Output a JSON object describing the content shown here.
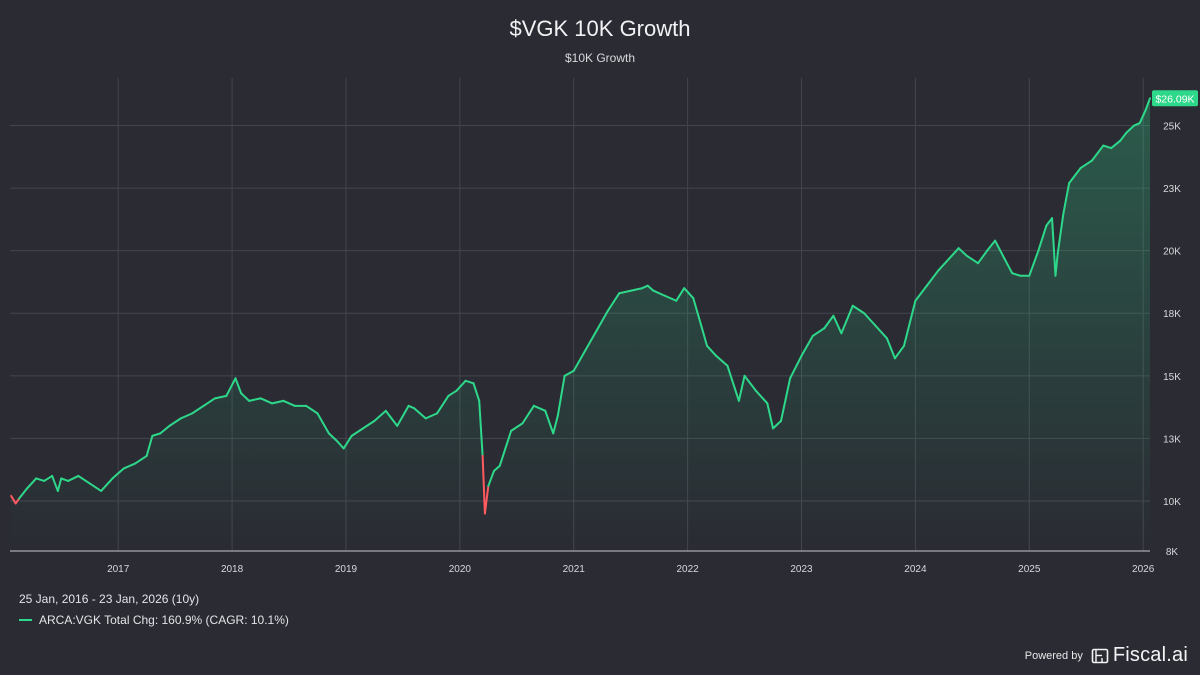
{
  "header": {
    "title": "$VGK 10K Growth",
    "subtitle": "$10K Growth"
  },
  "footer": {
    "range": "25 Jan, 2016 - 23 Jan, 2026 (10y)",
    "legend": "ARCA:VGK Total Chg: 160.9% (CAGR: 10.1%)",
    "powered_by": "Powered by",
    "brand": "Fiscal.ai"
  },
  "colors": {
    "background": "#2a2b33",
    "line_up": "#2ed88a",
    "line_down": "#ff5a5f",
    "grid": "#44454e",
    "badge": "#2ed88a"
  },
  "chart_data": {
    "type": "line",
    "title": "$VGK 10K Growth",
    "subtitle": "$10K Growth",
    "xlabel": "",
    "ylabel": "",
    "baseline": 10000,
    "last_value_label": "$26.09K",
    "y_ticks": [
      {
        "value": 8000,
        "label": "8K"
      },
      {
        "value": 10000,
        "label": "10K"
      },
      {
        "value": 12500,
        "label": "13K"
      },
      {
        "value": 15000,
        "label": "15K"
      },
      {
        "value": 17500,
        "label": "18K"
      },
      {
        "value": 20000,
        "label": "20K"
      },
      {
        "value": 22500,
        "label": "23K"
      },
      {
        "value": 25000,
        "label": "25K"
      }
    ],
    "x_ticks": [
      "2017",
      "2018",
      "2019",
      "2020",
      "2021",
      "2022",
      "2023",
      "2024",
      "2025",
      "2026"
    ],
    "x_tick_values": [
      2017,
      2018,
      2019,
      2020,
      2021,
      2022,
      2023,
      2024,
      2025,
      2026
    ],
    "xlim": [
      2016.05,
      2026.06
    ],
    "ylim": [
      8000,
      26900
    ],
    "grid": true,
    "series": [
      {
        "name": "ARCA:VGK",
        "x": [
          2016.06,
          2016.1,
          2016.13,
          2016.2,
          2016.28,
          2016.35,
          2016.42,
          2016.47,
          2016.5,
          2016.56,
          2016.65,
          2016.75,
          2016.85,
          2016.95,
          2017.05,
          2017.15,
          2017.25,
          2017.3,
          2017.37,
          2017.45,
          2017.55,
          2017.65,
          2017.75,
          2017.85,
          2017.95,
          2018.03,
          2018.08,
          2018.15,
          2018.25,
          2018.35,
          2018.45,
          2018.55,
          2018.65,
          2018.75,
          2018.85,
          2018.92,
          2018.98,
          2019.05,
          2019.15,
          2019.25,
          2019.35,
          2019.45,
          2019.55,
          2019.6,
          2019.7,
          2019.8,
          2019.9,
          2019.97,
          2020.05,
          2020.12,
          2020.17,
          2020.2,
          2020.22,
          2020.25,
          2020.3,
          2020.35,
          2020.45,
          2020.55,
          2020.65,
          2020.75,
          2020.82,
          2020.86,
          2020.92,
          2021.0,
          2021.1,
          2021.2,
          2021.3,
          2021.4,
          2021.5,
          2021.6,
          2021.65,
          2021.7,
          2021.8,
          2021.9,
          2021.97,
          2022.05,
          2022.12,
          2022.17,
          2022.25,
          2022.35,
          2022.45,
          2022.5,
          2022.6,
          2022.7,
          2022.75,
          2022.82,
          2022.9,
          2023.0,
          2023.1,
          2023.2,
          2023.28,
          2023.35,
          2023.45,
          2023.55,
          2023.65,
          2023.75,
          2023.82,
          2023.9,
          2024.0,
          2024.1,
          2024.2,
          2024.3,
          2024.38,
          2024.45,
          2024.55,
          2024.63,
          2024.7,
          2024.78,
          2024.85,
          2024.92,
          2025.0,
          2025.08,
          2025.15,
          2025.2,
          2025.23,
          2025.25,
          2025.3,
          2025.35,
          2025.45,
          2025.55,
          2025.65,
          2025.72,
          2025.8,
          2025.85,
          2025.92,
          2025.97,
          2026.02,
          2026.06
        ],
        "y": [
          10200,
          9900,
          10100,
          10500,
          10900,
          10800,
          11000,
          10400,
          10900,
          10800,
          11000,
          10700,
          10400,
          10900,
          11300,
          11500,
          11800,
          12600,
          12700,
          13000,
          13300,
          13500,
          13800,
          14100,
          14200,
          14900,
          14300,
          14000,
          14100,
          13900,
          14000,
          13800,
          13800,
          13500,
          12700,
          12400,
          12100,
          12600,
          12900,
          13200,
          13600,
          13000,
          13800,
          13700,
          13300,
          13500,
          14200,
          14400,
          14800,
          14700,
          14000,
          11800,
          9500,
          10600,
          11200,
          11400,
          12800,
          13100,
          13800,
          13600,
          12700,
          13400,
          15000,
          15200,
          16000,
          16800,
          17600,
          18300,
          18400,
          18500,
          18600,
          18400,
          18200,
          18000,
          18500,
          18100,
          17000,
          16200,
          15800,
          15400,
          14000,
          15000,
          14400,
          13900,
          12900,
          13200,
          14900,
          15800,
          16600,
          16900,
          17400,
          16700,
          17800,
          17500,
          17000,
          16500,
          15700,
          16200,
          18000,
          18600,
          19200,
          19700,
          20100,
          19800,
          19500,
          20000,
          20400,
          19700,
          19100,
          19000,
          19000,
          20000,
          21000,
          21300,
          19000,
          19900,
          21500,
          22700,
          23300,
          23600,
          24200,
          24100,
          24400,
          24700,
          25000,
          25100,
          25600,
          26090
        ]
      }
    ]
  }
}
